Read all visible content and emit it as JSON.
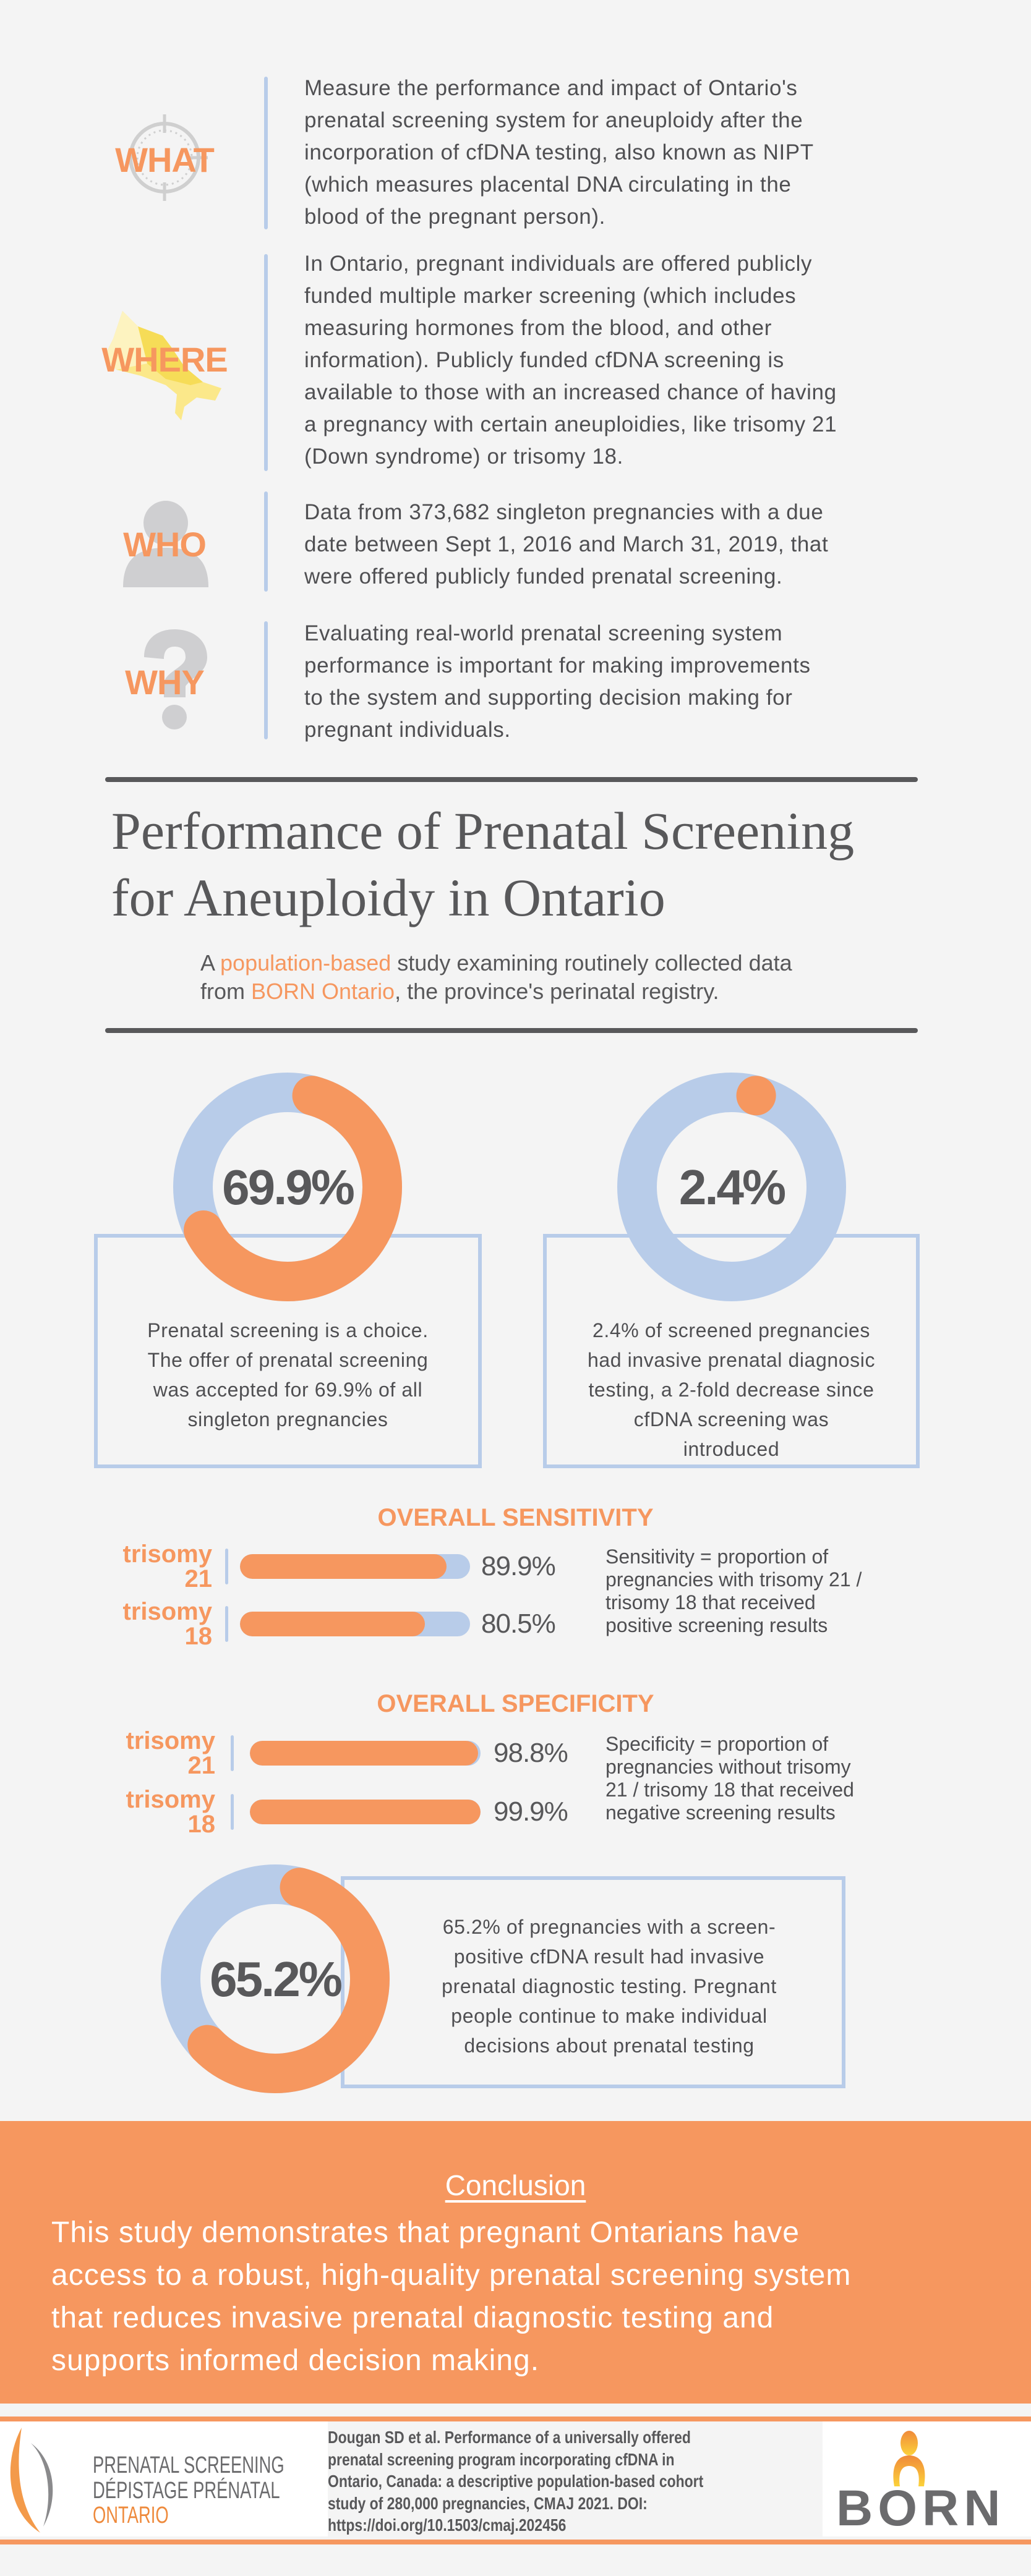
{
  "intro_rows": [
    {
      "label": "WHAT",
      "icon": "target-icon",
      "lines": [
        "Measure the performance and impact of Ontario's",
        "prenatal screening system for aneuploidy after the",
        "incorporation of cfDNA testing, also known as NIPT",
        "(which measures placental DNA circulating in the",
        "blood of the pregnant person)."
      ]
    },
    {
      "label": "WHERE",
      "icon": "ontario-map-icon",
      "lines": [
        "In Ontario, pregnant individuals are offered publicly",
        "funded multiple marker screening (which includes",
        "measuring hormones from the blood, and other",
        "information). Publicly funded cfDNA screening is",
        "available to those with an increased chance of having",
        "a pregnancy with certain aneuploidies, like trisomy 21",
        "(Down syndrome) or trisomy 18."
      ]
    },
    {
      "label": "WHO",
      "icon": "person-icon",
      "lines": [
        "Data from 373,682 singleton pregnancies with a due",
        "date between Sept 1, 2016 and March 31, 2019, that",
        "were offered publicly funded prenatal screening."
      ]
    },
    {
      "label": "WHY",
      "icon": "question-mark-icon",
      "lines": [
        "Evaluating real-world prenatal screening system",
        "performance is important for making improvements",
        "to the system and supporting decision making for",
        "pregnant individuals."
      ]
    }
  ],
  "title": {
    "line1": "Performance of Prenatal Screening",
    "line2": "for Aneuploidy in Ontario"
  },
  "subtitle": {
    "l1_a": "A ",
    "l1_hl": "population-based",
    "l1_b": " study examining routinely collected data",
    "l2_a": "from ",
    "l2_hl": "BORN Ontario",
    "l2_b": ", the province's perinatal registry."
  },
  "donuts": [
    {
      "value": 69.9,
      "label": "69.9%",
      "lines": [
        "Prenatal screening is a choice.",
        "The offer of prenatal screening",
        "was accepted for 69.9% of all",
        "singleton pregnancies"
      ]
    },
    {
      "value": 2.4,
      "label": "2.4%",
      "lines": [
        "2.4% of screened pregnancies",
        "had invasive prenatal diagnosic",
        "testing, a 2-fold decrease since",
        "cfDNA screening was",
        "introduced"
      ]
    },
    {
      "value": 65.2,
      "label": "65.2%",
      "lines": [
        "65.2% of pregnancies with a screen-",
        "positive cfDNA result had invasive",
        "prenatal diagnostic testing. Pregnant",
        "people continue to make individual",
        "decisions about prenatal testing"
      ]
    }
  ],
  "sensitivity": {
    "title": "OVERALL SENSITIVITY",
    "bars": [
      {
        "label": "trisomy 21",
        "value": 89.9,
        "text": "89.9%"
      },
      {
        "label": "trisomy 18",
        "value": 80.5,
        "text": "80.5%"
      }
    ],
    "desc": [
      "Sensitivity = proportion of",
      "pregnancies with trisomy 21 /",
      "trisomy 18 that received",
      "positive screening results"
    ]
  },
  "specificity": {
    "title": "OVERALL SPECIFICITY",
    "bars": [
      {
        "label": "trisomy 21",
        "value": 98.8,
        "text": "98.8%"
      },
      {
        "label": "trisomy 18",
        "value": 99.9,
        "text": "99.9%"
      }
    ],
    "desc": [
      "Specificity = proportion of",
      "pregnancies without trisomy",
      "21 / trisomy 18 that received",
      "negative screening results"
    ]
  },
  "conclusion": {
    "title": "Conclusion",
    "lines": [
      "This study demonstrates that pregnant Ontarians have",
      "access to a robust, high-quality prenatal screening system",
      "that reduces invasive prenatal diagnostic testing and",
      "supports informed decision making."
    ]
  },
  "footer": {
    "logo_left": {
      "line1": "PRENATAL SCREENING",
      "line2": "DÉPISTAGE PRÉNATAL",
      "line3": "ONTARIO"
    },
    "citation": [
      "Dougan SD et al. Performance of a universally offered",
      "prenatal screening program incorporating cfDNA in",
      "Ontario, Canada: a descriptive population-based cohort",
      "study of 280,000 pregnancies,  CMAJ 2021. DOI:",
      "https://doi.org/10.1503/cmaj.202456"
    ],
    "logo_right": "BORN"
  },
  "colors": {
    "orange": "#f6975f",
    "blue": "#b8cce9",
    "text": "#58585a",
    "background": "#f4f4f4"
  }
}
